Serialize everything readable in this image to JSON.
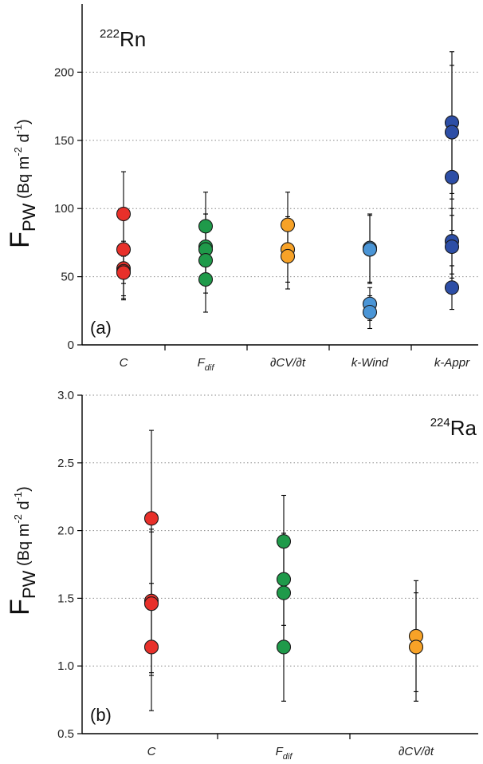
{
  "chart_data": [
    {
      "type": "scatter",
      "panel_label": "(a)",
      "isotope": {
        "mass": "222",
        "element": "Rn"
      },
      "ylabel": {
        "main": "F",
        "sub": "PW",
        "units_prefix": "(Bq m",
        "exp1": "-2",
        "mid": " d",
        "exp2": "-1",
        "close": ")"
      },
      "ylim": [
        0,
        250
      ],
      "yticks": [
        0,
        50,
        100,
        150,
        200
      ],
      "ytick_labels": [
        "0",
        "50",
        "100",
        "150",
        "200"
      ],
      "grid": "horizontal-dotted",
      "categories": [
        {
          "label": "C",
          "sub": ""
        },
        {
          "label": "F",
          "sub": "dif"
        },
        {
          "label": "∂CV/∂t",
          "sub": ""
        },
        {
          "label": "k-Wind",
          "sub": ""
        },
        {
          "label": "k-Appr",
          "sub": ""
        }
      ],
      "series": [
        {
          "category": "C",
          "color": "#e8302a",
          "points": [
            {
              "y": 96,
              "lo": 65,
              "hi": 127
            },
            {
              "y": 70,
              "lo": 45,
              "hi": 95
            },
            {
              "y": 56,
              "lo": 36,
              "hi": 76
            },
            {
              "y": 54,
              "lo": 34,
              "hi": 74
            },
            {
              "y": 53,
              "lo": 33,
              "hi": 73
            }
          ]
        },
        {
          "category": "F_dif",
          "color": "#1f9a4a",
          "points": [
            {
              "y": 87,
              "lo": 62,
              "hi": 112
            },
            {
              "y": 72,
              "lo": 48,
              "hi": 96
            },
            {
              "y": 70,
              "lo": 44,
              "hi": 96
            },
            {
              "y": 62,
              "lo": 38,
              "hi": 86
            },
            {
              "y": 48,
              "lo": 24,
              "hi": 72
            }
          ]
        },
        {
          "category": "∂CV/∂t",
          "color": "#f7a227",
          "points": [
            {
              "y": 88,
              "lo": 64,
              "hi": 112
            },
            {
              "y": 70,
              "lo": 46,
              "hi": 94
            },
            {
              "y": 65,
              "lo": 41,
              "hi": 89
            }
          ]
        },
        {
          "category": "k-Wind",
          "color": "#4a95d6",
          "points": [
            {
              "y": 71,
              "lo": 46,
              "hi": 96
            },
            {
              "y": 70,
              "lo": 45,
              "hi": 95
            },
            {
              "y": 30,
              "lo": 18,
              "hi": 42
            },
            {
              "y": 24,
              "lo": 12,
              "hi": 36
            }
          ]
        },
        {
          "category": "k-Appr",
          "color": "#2d4ea6",
          "points": [
            {
              "y": 163,
              "lo": 111,
              "hi": 215
            },
            {
              "y": 156,
              "lo": 107,
              "hi": 205
            },
            {
              "y": 123,
              "lo": 84,
              "hi": 162
            },
            {
              "y": 76,
              "lo": 52,
              "hi": 100
            },
            {
              "y": 72,
              "lo": 49,
              "hi": 95
            },
            {
              "y": 42,
              "lo": 26,
              "hi": 58
            }
          ]
        }
      ]
    },
    {
      "type": "scatter",
      "panel_label": "(b)",
      "isotope": {
        "mass": "224",
        "element": "Ra"
      },
      "ylabel": {
        "main": "F",
        "sub": "PW",
        "units_prefix": "(Bq m",
        "exp1": "-2",
        "mid": " d",
        "exp2": "-1",
        "close": ")"
      },
      "ylim": [
        0.5,
        3.0
      ],
      "yticks": [
        0.5,
        1.0,
        1.5,
        2.0,
        2.5,
        3.0
      ],
      "ytick_labels": [
        "0.5",
        "1.0",
        "1.5",
        "2.0",
        "2.5",
        "3.0"
      ],
      "grid": "horizontal-dotted",
      "categories": [
        {
          "label": "C",
          "sub": ""
        },
        {
          "label": "F",
          "sub": "dif"
        },
        {
          "label": "∂CV/∂t",
          "sub": ""
        }
      ],
      "series": [
        {
          "category": "C",
          "color": "#e8302a",
          "points": [
            {
              "y": 2.09,
              "lo": 1.44,
              "hi": 2.74
            },
            {
              "y": 1.48,
              "lo": 0.95,
              "hi": 2.01
            },
            {
              "y": 1.46,
              "lo": 0.93,
              "hi": 1.99
            },
            {
              "y": 1.14,
              "lo": 0.67,
              "hi": 1.61
            }
          ]
        },
        {
          "category": "F_dif",
          "color": "#1f9a4a",
          "points": [
            {
              "y": 1.92,
              "lo": 1.58,
              "hi": 2.26
            },
            {
              "y": 1.64,
              "lo": 1.3,
              "hi": 1.98
            },
            {
              "y": 1.54,
              "lo": 1.1,
              "hi": 1.98
            },
            {
              "y": 1.14,
              "lo": 0.74,
              "hi": 1.54
            }
          ]
        },
        {
          "category": "∂CV/∂t",
          "color": "#f7a227",
          "points": [
            {
              "y": 1.22,
              "lo": 0.81,
              "hi": 1.63
            },
            {
              "y": 1.14,
              "lo": 0.74,
              "hi": 1.54
            }
          ]
        }
      ]
    }
  ]
}
